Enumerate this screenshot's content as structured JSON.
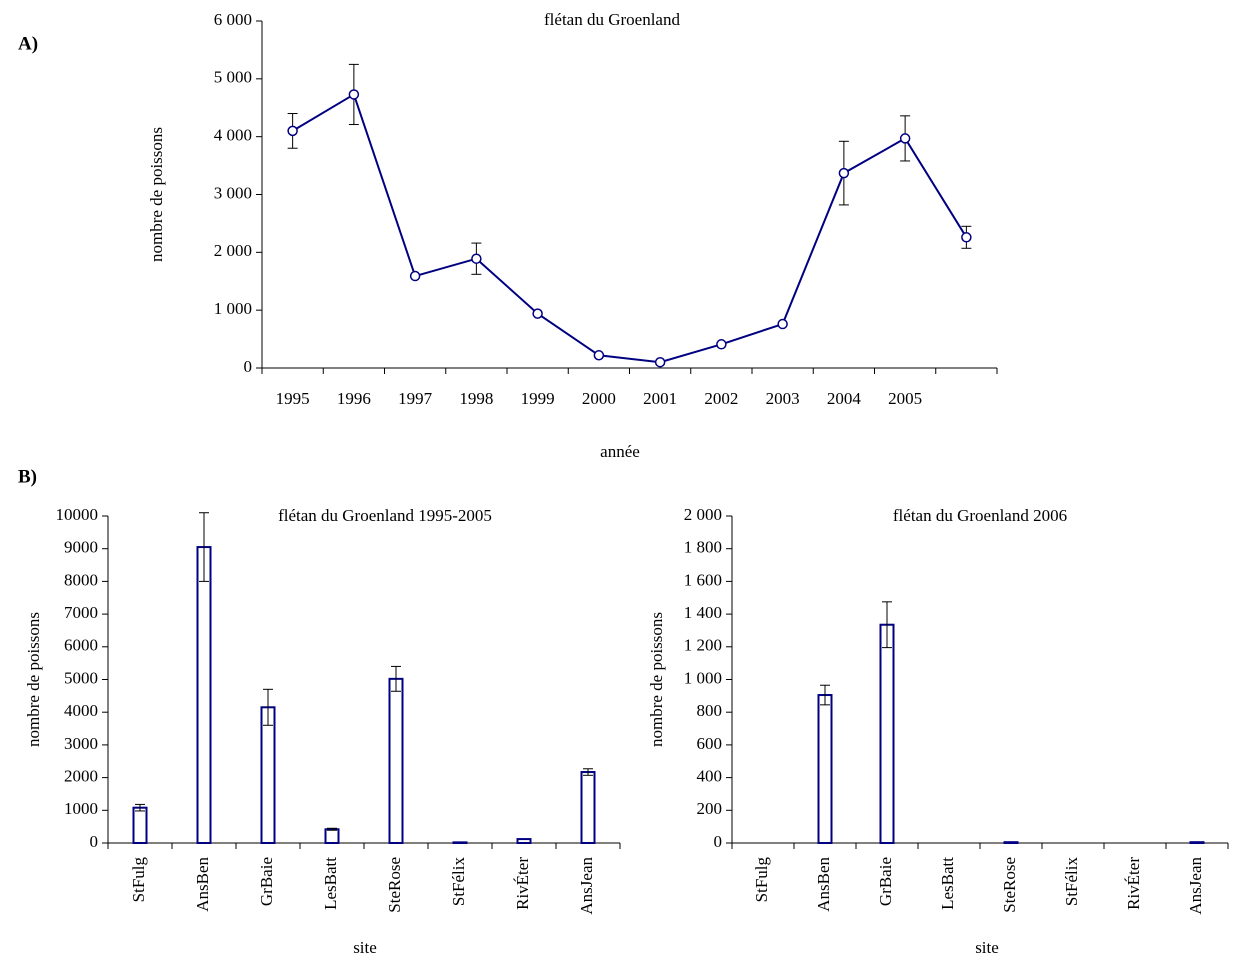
{
  "panel_labels": [
    "A)",
    "B)"
  ],
  "chart_data": [
    {
      "type": "line",
      "title": "flétan du Groenland",
      "x_label": "année",
      "y_label": "nombre de poissons",
      "categories": [
        "1995",
        "1996",
        "1997",
        "1998",
        "1999",
        "2000",
        "2001",
        "2002",
        "2003",
        "2004",
        "2005",
        null
      ],
      "values": [
        4100,
        4730,
        1590,
        1890,
        940,
        220,
        100,
        410,
        760,
        3370,
        3970,
        2260
      ],
      "errors": [
        300,
        520,
        0,
        270,
        0,
        0,
        0,
        0,
        0,
        550,
        390,
        190
      ],
      "color": "#000080",
      "ylim": [
        0,
        6000
      ],
      "yticks": [
        0,
        {
          "value": 1000,
          "label": "1 000"
        },
        {
          "value": 2000,
          "label": "2 000"
        },
        {
          "value": 3000,
          "label": "3 000"
        },
        {
          "value": 4000,
          "label": "4 000"
        },
        {
          "value": 5000,
          "label": "5 000"
        },
        {
          "value": 6000,
          "label": "6 000"
        }
      ]
    },
    {
      "type": "bar",
      "title": "flétan du Groenland 1995-2005",
      "x_label": "site",
      "y_label": "nombre de poissons",
      "categories": [
        "StFulg",
        "AnsBen",
        "GrBaie",
        "LesBatt",
        "SteRose",
        "StFélix",
        "RivÉter",
        "AnsJean"
      ],
      "values": [
        1080,
        9050,
        4150,
        420,
        5020,
        20,
        120,
        2170
      ],
      "errors": [
        100,
        1050,
        550,
        30,
        380,
        0,
        0,
        100
      ],
      "color": "#000080",
      "ylim": [
        0,
        10000
      ],
      "yticks": [
        0,
        1000,
        2000,
        3000,
        4000,
        5000,
        6000,
        7000,
        8000,
        9000,
        10000
      ]
    },
    {
      "type": "bar",
      "title": "flétan du Groenland 2006",
      "x_label": "site",
      "y_label": "nombre de poissons",
      "categories": [
        "StFulg",
        "AnsBen",
        "GrBaie",
        "LesBatt",
        "SteRose",
        "StFélix",
        "RivÉter",
        "AnsJean"
      ],
      "values": [
        0,
        905,
        1335,
        0,
        5,
        0,
        0,
        5
      ],
      "errors": [
        0,
        60,
        140,
        0,
        0,
        0,
        0,
        0
      ],
      "color": "#000080",
      "ylim": [
        0,
        2000
      ],
      "yticks": [
        0,
        200,
        400,
        600,
        800,
        {
          "value": 1000,
          "label": "1 000"
        },
        {
          "value": 1200,
          "label": "1 200"
        },
        {
          "value": 1400,
          "label": "1 400"
        },
        {
          "value": 1600,
          "label": "1 600"
        },
        {
          "value": 1800,
          "label": "1 800"
        },
        {
          "value": 2000,
          "label": "2 000"
        }
      ]
    }
  ]
}
